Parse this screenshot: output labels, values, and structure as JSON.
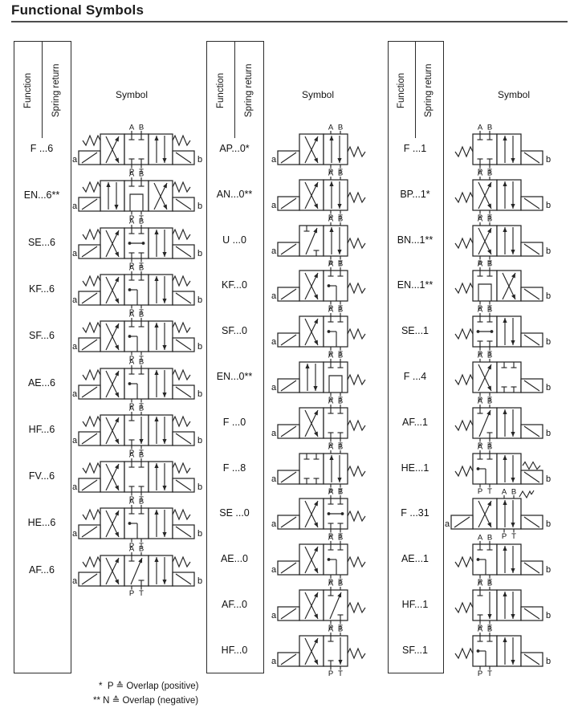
{
  "page": {
    "title": "Functional Symbols"
  },
  "table_headers": {
    "function": "Function",
    "spring_return": "Spring return",
    "symbol": "Symbol"
  },
  "ports": {
    "top": [
      "A",
      "B"
    ],
    "bottom": [
      "P",
      "T"
    ]
  },
  "actuators": {
    "a": "a",
    "b": "b"
  },
  "notes": [
    "*  P ≙ Overlap (positive)",
    "** N ≙ Overlap (negative)"
  ],
  "groups": [
    {
      "valve": "4/3 directional valve, solenoid a and b with spring centering",
      "layout": {
        "left": "spring+sol-a",
        "right": "spring+sol-b",
        "label_box": 1
      },
      "rows": [
        {
          "code": "F ...6",
          "boxes": [
            "cross",
            "closed",
            "parallel"
          ]
        },
        {
          "code": "EN...6**",
          "boxes": [
            "parallel",
            "float",
            "cross"
          ]
        },
        {
          "code": "SE...6",
          "boxes": [
            "cross",
            "abdot",
            "parallel"
          ]
        },
        {
          "code": "KF...6",
          "boxes": [
            "cross",
            "benddot",
            "parallel"
          ]
        },
        {
          "code": "SF...6",
          "boxes": [
            "cross",
            "benddot",
            "parallel"
          ]
        },
        {
          "code": "AE...6",
          "boxes": [
            "cross",
            "benddot",
            "parallel"
          ]
        },
        {
          "code": "HF...6",
          "boxes": [
            "cross",
            "stubdown",
            "parallel"
          ]
        },
        {
          "code": "FV...6",
          "boxes": [
            "cross",
            "closed",
            "parallel"
          ]
        },
        {
          "code": "HE...6",
          "boxes": [
            "cross",
            "benddot",
            "parallel"
          ]
        },
        {
          "code": "AF...6",
          "boxes": [
            "cross",
            "diag",
            "parallel"
          ]
        }
      ]
    },
    {
      "valve": "4/2 directional valve, solenoid a with spring return right",
      "layout": {
        "left": "sol-a",
        "right": "spring",
        "label_box": 1
      },
      "rows": [
        {
          "code": "AP...0*",
          "boxes": [
            "cross",
            "parallel"
          ]
        },
        {
          "code": "AN...0**",
          "boxes": [
            "cross",
            "parallel"
          ]
        },
        {
          "code": "U ...0",
          "boxes": [
            "diag",
            "parallel"
          ]
        },
        {
          "code": "KF...0",
          "boxes": [
            "cross",
            "benddot"
          ]
        },
        {
          "code": "SF...0",
          "boxes": [
            "cross",
            "benddot"
          ]
        },
        {
          "code": "EN...0**",
          "boxes": [
            "parallel",
            "float"
          ]
        },
        {
          "code": "F ...0",
          "boxes": [
            "cross",
            "closed"
          ]
        },
        {
          "code": "F ...8",
          "boxes": [
            "closed",
            "parallel"
          ]
        },
        {
          "code": "SE ...0",
          "boxes": [
            "cross",
            "abdot"
          ]
        },
        {
          "code": "AE...0",
          "boxes": [
            "cross",
            "benddot"
          ]
        },
        {
          "code": "AF...0",
          "boxes": [
            "cross",
            "diag"
          ]
        },
        {
          "code": "HF...0",
          "boxes": [
            "cross",
            "stubdown"
          ]
        }
      ]
    },
    {
      "valve": "4/2 directional valve, spring return left with solenoid b",
      "layout": {
        "left": "spring",
        "right": "sol-b",
        "label_box": 0
      },
      "rows": [
        {
          "code": "F ...1",
          "boxes": [
            "closed",
            "parallel"
          ]
        },
        {
          "code": "BP...1*",
          "boxes": [
            "cross",
            "parallel"
          ]
        },
        {
          "code": "BN...1**",
          "boxes": [
            "cross",
            "parallel"
          ]
        },
        {
          "code": "EN...1**",
          "boxes": [
            "float",
            "cross"
          ]
        },
        {
          "code": "SE...1",
          "boxes": [
            "abdot",
            "parallel"
          ]
        },
        {
          "code": "F ...4",
          "boxes": [
            "cross",
            "closed"
          ]
        },
        {
          "code": "AF...1",
          "boxes": [
            "diag",
            "parallel"
          ]
        },
        {
          "code": "HE...1",
          "boxes": [
            "benddot",
            "parallel"
          ],
          "extras": [
            "spring-top-right"
          ]
        },
        {
          "code": "F ...31",
          "boxes": [
            "cross",
            "parallel"
          ],
          "layout": {
            "left": "sol-a",
            "right": "sol-b",
            "label_box": 1
          },
          "extras": [
            "detent"
          ]
        },
        {
          "code": "AE...1",
          "boxes": [
            "benddot",
            "parallel"
          ]
        },
        {
          "code": "HF...1",
          "boxes": [
            "stubdown",
            "parallel"
          ]
        },
        {
          "code": "SF...1",
          "boxes": [
            "benddot",
            "parallel"
          ]
        }
      ]
    }
  ]
}
